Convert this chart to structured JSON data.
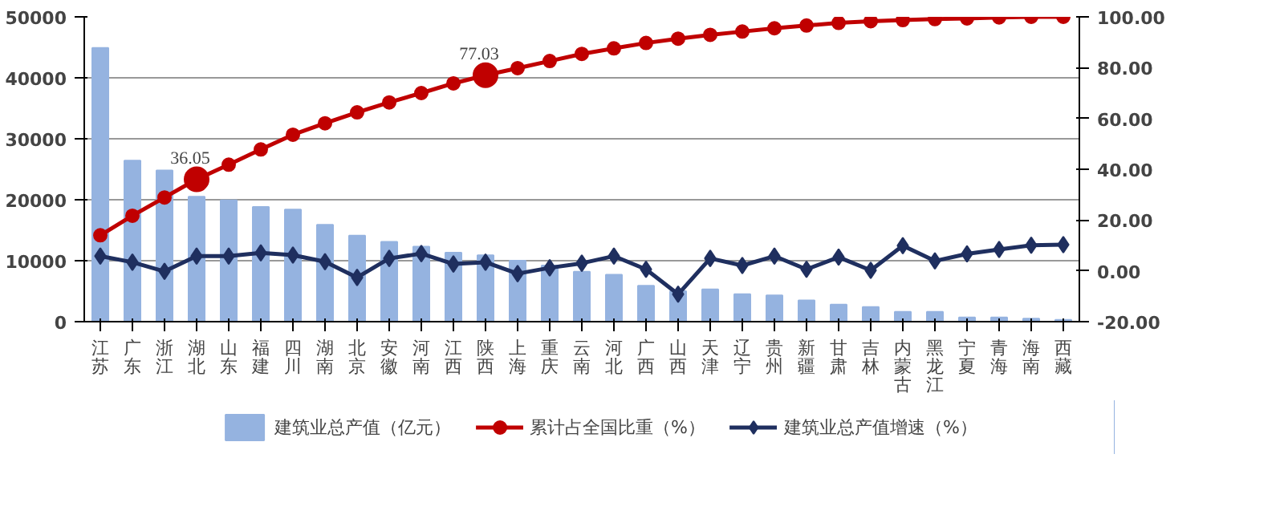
{
  "chart_data": {
    "type": "bar",
    "categories": [
      "江苏",
      "广东",
      "浙江",
      "湖北",
      "山东",
      "福建",
      "四川",
      "湖南",
      "北京",
      "安徽",
      "河南",
      "江西",
      "陕西",
      "上海",
      "重庆",
      "云南",
      "河北",
      "广西",
      "山西",
      "天津",
      "辽宁",
      "贵州",
      "新疆",
      "甘肃",
      "吉林",
      "内蒙古",
      "黑龙江",
      "宁夏",
      "青海",
      "海南",
      "西藏"
    ],
    "series": [
      {
        "name": "建筑业总产值（亿元）",
        "color": "#95b3e0",
        "values": [
          44900,
          26400,
          24800,
          20500,
          19900,
          18800,
          18400,
          15900,
          14100,
          13100,
          12300,
          11300,
          10900,
          10000,
          9200,
          8200,
          7700,
          5900,
          5000,
          5300,
          4500,
          4300,
          3500,
          2800,
          2400,
          1600,
          1600,
          700,
          700,
          500,
          300
        ]
      },
      {
        "name": "累计占全国比重（%）",
        "type": "line",
        "axis": "y2",
        "color": "#c00000",
        "marker": "circle",
        "values": [
          14.0,
          21.7,
          28.9,
          36.05,
          41.8,
          47.8,
          53.6,
          58.1,
          62.4,
          66.3,
          70.0,
          73.8,
          77.03,
          79.8,
          82.6,
          85.4,
          87.6,
          89.7,
          91.4,
          92.9,
          94.2,
          95.5,
          96.6,
          97.6,
          98.3,
          98.7,
          99.1,
          99.4,
          99.8,
          100,
          100
        ],
        "value_labels": [
          null,
          null,
          null,
          "36.05",
          null,
          null,
          null,
          null,
          null,
          null,
          null,
          null,
          "77.03",
          null,
          null,
          null,
          null,
          null,
          null,
          null,
          null,
          null,
          null,
          null,
          null,
          null,
          null,
          null,
          null,
          null,
          null
        ]
      },
      {
        "name": "建筑业总产值增速（%）",
        "type": "line",
        "axis": "y2",
        "color": "#1f2f5f",
        "marker": "diamond",
        "values": [
          5.8,
          3.4,
          -0.2,
          5.8,
          5.8,
          7.1,
          6.2,
          3.6,
          -2.6,
          4.9,
          6.8,
          2.7,
          3.4,
          -1.1,
          1.2,
          3.0,
          5.8,
          0.6,
          -9.2,
          4.9,
          2.1,
          5.8,
          0.6,
          5.4,
          0.2,
          9.9,
          3.9,
          6.7,
          8.4,
          10.1,
          10.3
        ]
      }
    ],
    "ylim": [
      0,
      50000
    ],
    "yticks": [
      0,
      10000,
      20000,
      30000,
      40000,
      50000
    ],
    "y2lim": [
      -20,
      100
    ],
    "y2ticks": [
      {
        "value": -20,
        "label": "-20.00"
      },
      {
        "value": 0,
        "label": "0.00"
      },
      {
        "value": 20,
        "label": "20.00"
      },
      {
        "value": 40,
        "label": "40.00"
      },
      {
        "value": 60,
        "label": "60.00"
      },
      {
        "value": 80,
        "label": "80.00"
      },
      {
        "value": 100,
        "label": "100.00"
      }
    ],
    "grid": "y",
    "legend": "bottom"
  }
}
